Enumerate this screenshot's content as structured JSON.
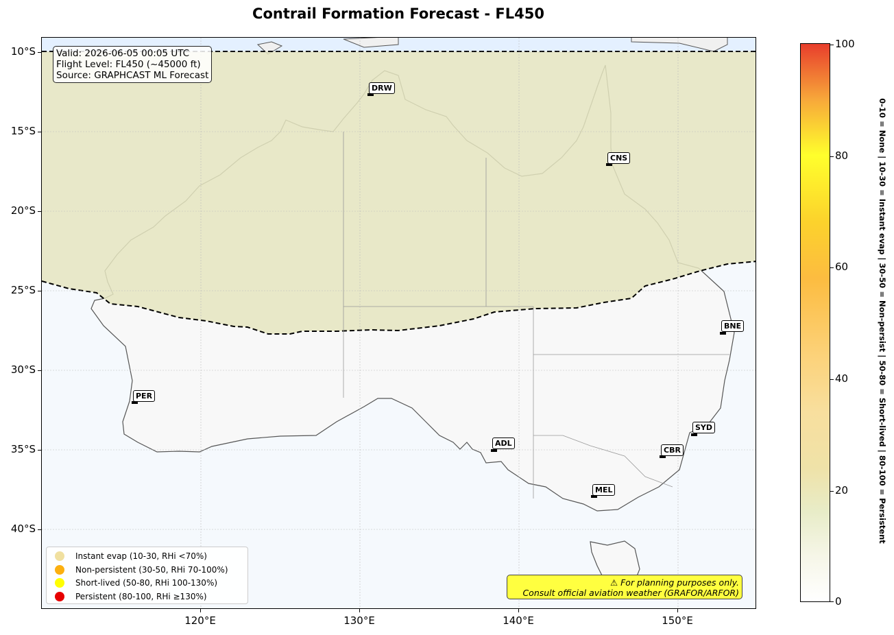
{
  "title": "Contrail Formation Forecast - FL450",
  "info": {
    "line1": "Valid: 2026-06-05 00:05 UTC",
    "line2": "Flight Level: FL450 (~45000 ft)",
    "line3": "Source: GRAPHCAST ML Forecast"
  },
  "axes": {
    "lat_ticks": [
      "10°S",
      "15°S",
      "20°S",
      "25°S",
      "30°S",
      "35°S",
      "40°S"
    ],
    "lon_ticks": [
      "120°E",
      "130°E",
      "140°E",
      "150°E"
    ]
  },
  "cities": [
    {
      "code": "DRW"
    },
    {
      "code": "CNS"
    },
    {
      "code": "BNE"
    },
    {
      "code": "PER"
    },
    {
      "code": "SYD"
    },
    {
      "code": "ADL"
    },
    {
      "code": "CBR"
    },
    {
      "code": "MEL"
    }
  ],
  "legend": [
    {
      "label": "Instant evap (10-30, RHi <70%)",
      "color": "#f0e0a0"
    },
    {
      "label": "Non-persistent (30-50, RHi 70-100%)",
      "color": "#fcb010"
    },
    {
      "label": "Short-lived (50-80, RHi 100-130%)",
      "color": "#ffff00"
    },
    {
      "label": "Persistent (80-100, RHi ≥130%)",
      "color": "#e60000"
    }
  ],
  "disclaimer": {
    "line1": "⚠ For planning purposes only.",
    "line2": "Consult official aviation weather (GRAFOR/ARFOR)"
  },
  "colorbar": {
    "ticks": [
      "0",
      "20",
      "40",
      "60",
      "80",
      "100"
    ],
    "label": "0-10 = None  |  10-30 = Instant evap  |  30-50 = Non-persist  |  50-80 = Short-lived  |  80-100 = Persistent"
  },
  "colors": {
    "contrail_zone": "#e6e6c0",
    "land": "#f8f8f8",
    "ocean": "#f4f9ff",
    "top_ocean": "#e4f0ff"
  }
}
